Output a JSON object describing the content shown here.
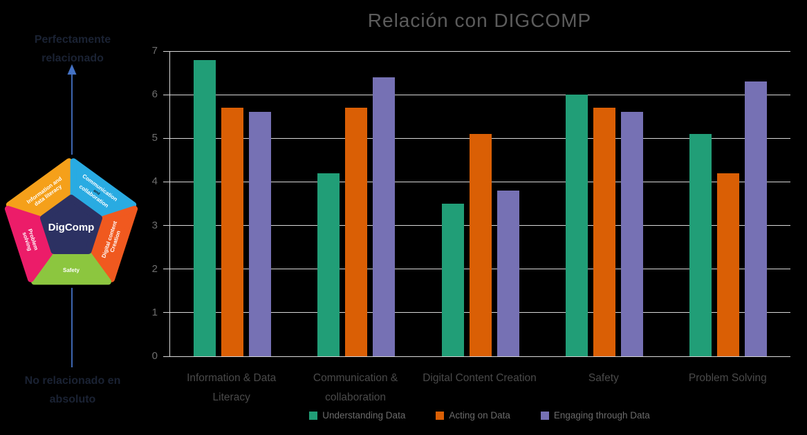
{
  "left_panel": {
    "top_label": "Perfectamente relacionado",
    "bottom_label": "No relacionado en absoluto",
    "arrow_color": "#4472C4",
    "pentagon": {
      "center_label": "DigComp",
      "center_color": "#2C3162",
      "petals": [
        {
          "label_lines": [
            "Information and",
            "data literacy"
          ],
          "color": "#F5A01A"
        },
        {
          "label_lines": [
            "Communication",
            "and",
            "collaboration"
          ],
          "color": "#29ABE2",
          "small_line": 1
        },
        {
          "label_lines": [
            "Digital content",
            "Creation"
          ],
          "color": "#F0591F"
        },
        {
          "label_lines": [
            "Safety"
          ],
          "color": "#8CC63F"
        },
        {
          "label_lines": [
            "Problem",
            "solving"
          ],
          "color": "#EC1C69"
        }
      ]
    }
  },
  "chart_data": {
    "type": "bar",
    "title": "Relación con DIGCOMP",
    "categories": [
      "Information & Data Literacy",
      "Communication & collaboration",
      "Digital Content Creation",
      "Safety",
      "Problem Solving"
    ],
    "series": [
      {
        "name": "Understanding Data",
        "color": "#219E77",
        "values": [
          6.8,
          4.2,
          3.5,
          6.0,
          5.1
        ]
      },
      {
        "name": "Acting on Data",
        "color": "#DA5F05",
        "values": [
          5.7,
          5.7,
          5.1,
          5.7,
          4.2
        ]
      },
      {
        "name": "Engaging through Data",
        "color": "#7671B4",
        "values": [
          5.6,
          6.4,
          3.8,
          5.6,
          6.3
        ]
      }
    ],
    "xlabel": "",
    "ylabel": "",
    "ylim": [
      0,
      7
    ],
    "yticks": [
      0,
      1,
      2,
      3,
      4,
      5,
      6,
      7
    ],
    "grid": true,
    "gridline_color": "#D9D9D9",
    "legend_position": "bottom"
  }
}
